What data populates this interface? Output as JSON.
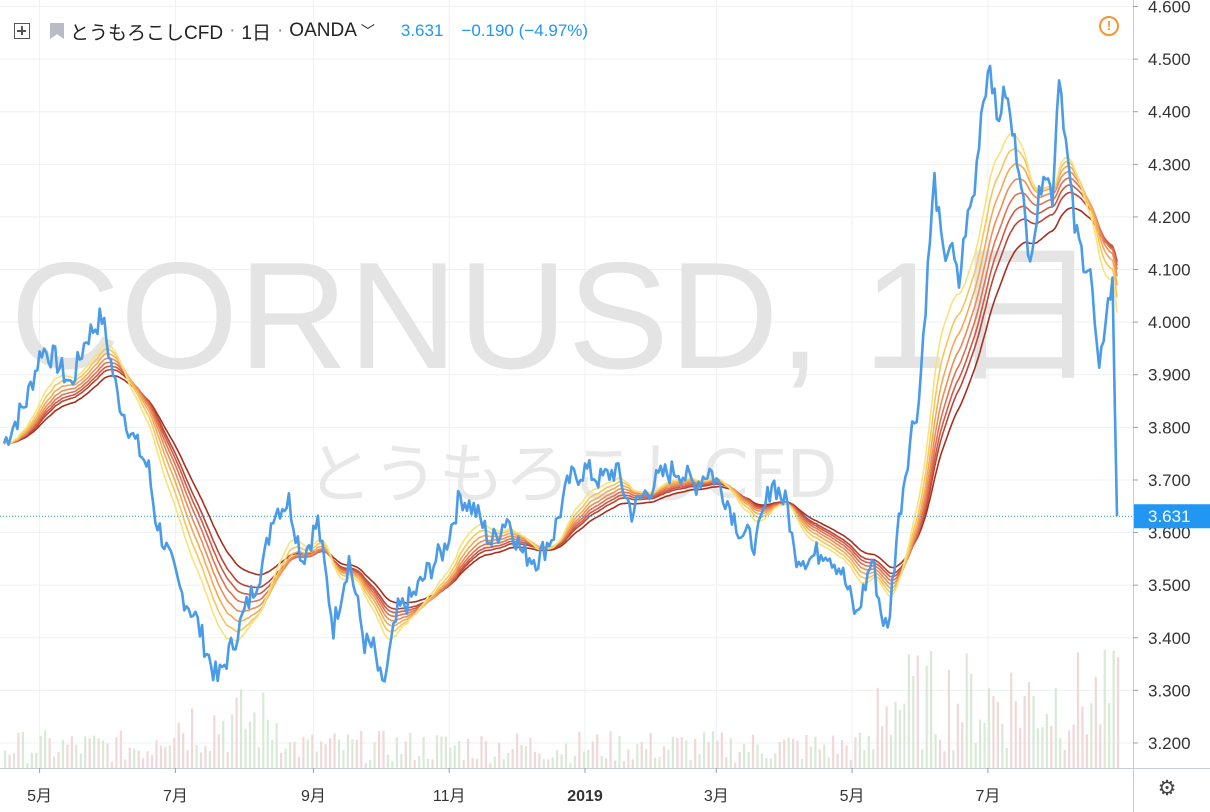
{
  "header": {
    "symbol_title": "とうもろこしCFD",
    "interval": "1日",
    "broker": "OANDA",
    "last_price": "3.631",
    "change": "−0.190 (−4.97%)"
  },
  "watermark": {
    "symbol": "CORNUSD, 1日",
    "description": "とうもろこしCFD"
  },
  "colors": {
    "price_line": "#4a9be8",
    "ema_ribbon": [
      "#f8e27c",
      "#f6c65a",
      "#f3aa55",
      "#ec8e55",
      "#e07352",
      "#d05a45",
      "#bb4536",
      "#a5301f"
    ],
    "volume_up": "#d8ead6",
    "volume_down": "#f0d8d8",
    "last_price_label": "#2196f3",
    "alert": "#f7962f"
  },
  "chart_data": {
    "type": "line",
    "x_range": [
      "2018-04-15",
      "2019-08-28"
    ],
    "ylim": [
      3.16,
      4.62
    ],
    "y_ticks": [
      "4.600",
      "4.500",
      "4.400",
      "4.300",
      "4.200",
      "4.100",
      "4.000",
      "3.900",
      "3.800",
      "3.700",
      "3.600",
      "3.500",
      "3.400",
      "3.300",
      "3.200"
    ],
    "x_ticks": [
      {
        "label": "5月",
        "date": "2018-05-01"
      },
      {
        "label": "7月",
        "date": "2018-07-01"
      },
      {
        "label": "9月",
        "date": "2018-09-01"
      },
      {
        "label": "11月",
        "date": "2018-11-01"
      },
      {
        "label": "2019",
        "date": "2019-01-01",
        "bold": true
      },
      {
        "label": "3月",
        "date": "2019-03-01"
      },
      {
        "label": "5月",
        "date": "2019-05-01"
      },
      {
        "label": "7月",
        "date": "2019-07-01"
      }
    ],
    "last_value": 3.631,
    "last_value_label": "3.631",
    "series": [
      {
        "type": "line",
        "points": [
          [
            "2018-04-15",
            3.77
          ],
          [
            "2018-04-25",
            3.85
          ],
          [
            "2018-05-02",
            3.95
          ],
          [
            "2018-05-08",
            3.93
          ],
          [
            "2018-05-15",
            3.88
          ],
          [
            "2018-05-22",
            3.97
          ],
          [
            "2018-05-29",
            4.01
          ],
          [
            "2018-06-05",
            3.86
          ],
          [
            "2018-06-12",
            3.78
          ],
          [
            "2018-06-19",
            3.72
          ],
          [
            "2018-06-22",
            3.63
          ],
          [
            "2018-06-26",
            3.58
          ],
          [
            "2018-07-03",
            3.49
          ],
          [
            "2018-07-10",
            3.44
          ],
          [
            "2018-07-17",
            3.35
          ],
          [
            "2018-07-20",
            3.32
          ],
          [
            "2018-07-27",
            3.39
          ],
          [
            "2018-08-03",
            3.47
          ],
          [
            "2018-08-10",
            3.55
          ],
          [
            "2018-08-14",
            3.64
          ],
          [
            "2018-08-21",
            3.66
          ],
          [
            "2018-08-27",
            3.55
          ],
          [
            "2018-09-03",
            3.62
          ],
          [
            "2018-09-10",
            3.42
          ],
          [
            "2018-09-17",
            3.55
          ],
          [
            "2018-09-24",
            3.39
          ],
          [
            "2018-09-28",
            3.38
          ],
          [
            "2018-10-02",
            3.3
          ],
          [
            "2018-10-09",
            3.45
          ],
          [
            "2018-10-16",
            3.48
          ],
          [
            "2018-10-23",
            3.53
          ],
          [
            "2018-10-30",
            3.57
          ],
          [
            "2018-11-06",
            3.67
          ],
          [
            "2018-11-13",
            3.64
          ],
          [
            "2018-11-20",
            3.58
          ],
          [
            "2018-11-27",
            3.63
          ],
          [
            "2018-12-04",
            3.56
          ],
          [
            "2018-12-11",
            3.55
          ],
          [
            "2018-12-18",
            3.6
          ],
          [
            "2018-12-25",
            3.7
          ],
          [
            "2019-01-01",
            3.72
          ],
          [
            "2019-01-08",
            3.7
          ],
          [
            "2019-01-15",
            3.72
          ],
          [
            "2019-01-22",
            3.64
          ],
          [
            "2019-01-29",
            3.68
          ],
          [
            "2019-02-05",
            3.71
          ],
          [
            "2019-02-12",
            3.72
          ],
          [
            "2019-02-19",
            3.69
          ],
          [
            "2019-02-26",
            3.72
          ],
          [
            "2019-03-05",
            3.67
          ],
          [
            "2019-03-12",
            3.6
          ],
          [
            "2019-03-19",
            3.58
          ],
          [
            "2019-03-26",
            3.7
          ],
          [
            "2019-04-02",
            3.65
          ],
          [
            "2019-04-05",
            3.56
          ],
          [
            "2019-04-12",
            3.55
          ],
          [
            "2019-04-19",
            3.57
          ],
          [
            "2019-04-26",
            3.53
          ],
          [
            "2019-05-03",
            3.44
          ],
          [
            "2019-05-10",
            3.55
          ],
          [
            "2019-05-14",
            3.45
          ],
          [
            "2019-05-17",
            3.41
          ],
          [
            "2019-05-21",
            3.59
          ],
          [
            "2019-05-24",
            3.69
          ],
          [
            "2019-05-28",
            3.8
          ],
          [
            "2019-05-31",
            3.85
          ],
          [
            "2019-06-04",
            4.1
          ],
          [
            "2019-06-07",
            4.27
          ],
          [
            "2019-06-11",
            4.12
          ],
          [
            "2019-06-14",
            4.15
          ],
          [
            "2019-06-18",
            4.07
          ],
          [
            "2019-06-21",
            4.18
          ],
          [
            "2019-06-25",
            4.25
          ],
          [
            "2019-06-28",
            4.4
          ],
          [
            "2019-07-02",
            4.5
          ],
          [
            "2019-07-05",
            4.38
          ],
          [
            "2019-07-09",
            4.44
          ],
          [
            "2019-07-12",
            4.36
          ],
          [
            "2019-07-16",
            4.28
          ],
          [
            "2019-07-19",
            4.12
          ],
          [
            "2019-07-23",
            4.2
          ],
          [
            "2019-07-26",
            4.3
          ],
          [
            "2019-07-30",
            4.24
          ],
          [
            "2019-08-02",
            4.48
          ],
          [
            "2019-08-06",
            4.3
          ],
          [
            "2019-08-09",
            4.18
          ],
          [
            "2019-08-13",
            4.12
          ],
          [
            "2019-08-16",
            4.1
          ],
          [
            "2019-08-20",
            3.89
          ],
          [
            "2019-08-23",
            4.02
          ],
          [
            "2019-08-26",
            4.07
          ],
          [
            "2019-08-28",
            3.631
          ]
        ]
      }
    ]
  }
}
